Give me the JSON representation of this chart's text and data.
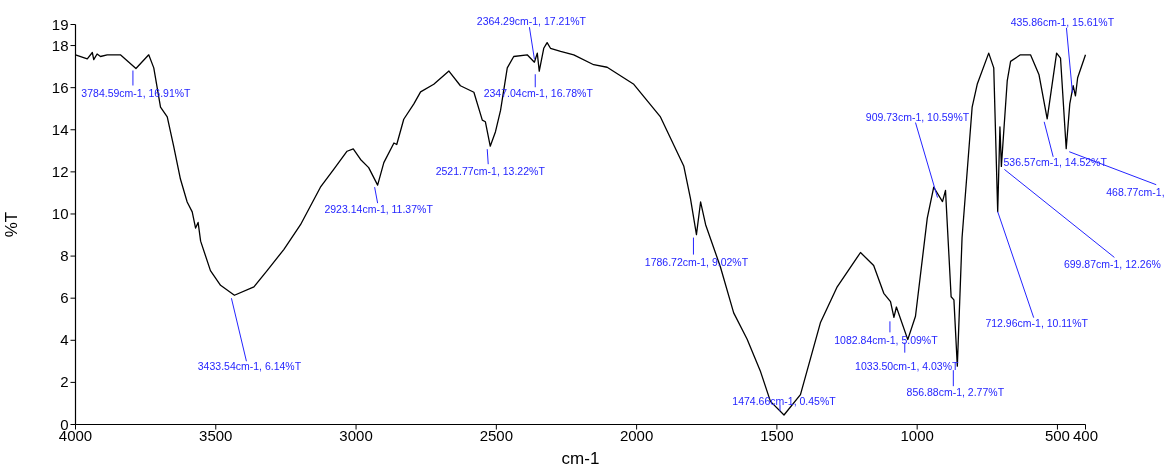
{
  "chart_data": {
    "type": "line",
    "xlabel": "cm-1",
    "ylabel": "%T",
    "xlim": [
      4000,
      400
    ],
    "ylim": [
      0,
      19
    ],
    "xticks": [
      4000,
      3500,
      3000,
      2500,
      2000,
      1500,
      1000,
      500,
      400
    ],
    "yticks": [
      0,
      2,
      4,
      6,
      8,
      10,
      12,
      14,
      16,
      18,
      19
    ],
    "grid": false,
    "series": [
      {
        "color": "#000000",
        "x": [
          4000,
          3958,
          3940,
          3935,
          3923,
          3911,
          3887,
          3840,
          3784.59,
          3739,
          3721,
          3697,
          3673,
          3650,
          3626,
          3602,
          3584,
          3572,
          3563,
          3554,
          3519,
          3483,
          3433.54,
          3364,
          3317,
          3257,
          3198,
          3127,
          3079,
          3032,
          3010,
          2984,
          2955,
          2923.14,
          2901,
          2865,
          2855,
          2830,
          2794,
          2770,
          2723,
          2669,
          2628,
          2580,
          2550,
          2539,
          2521.77,
          2503,
          2485,
          2461,
          2438,
          2390,
          2364.29,
          2354,
          2347.04,
          2331,
          2319,
          2307,
          2271,
          2224,
          2153,
          2105,
          2010,
          1915,
          1832,
          1808,
          1786.72,
          1772,
          1754,
          1701,
          1654,
          1606,
          1558,
          1523,
          1474.66,
          1416,
          1345,
          1285,
          1202,
          1155,
          1119,
          1095,
          1082.84,
          1074,
          1033.5,
          1006,
          964,
          941,
          909.73,
          899,
          879,
          869,
          856.88,
          840,
          804,
          786,
          745,
          727,
          712.96,
          705,
          699.87,
          679,
          667,
          632,
          596,
          566,
          536.57,
          503,
          489,
          468.77,
          456,
          444,
          435.86,
          428,
          400
        ],
        "values": [
          17.56,
          17.37,
          17.67,
          17.33,
          17.6,
          17.48,
          17.56,
          17.56,
          16.91,
          17.56,
          16.94,
          15.08,
          14.61,
          13.21,
          11.66,
          10.57,
          10.1,
          9.33,
          9.6,
          8.71,
          7.31,
          6.61,
          6.14,
          6.54,
          7.31,
          8.32,
          9.49,
          11.27,
          12.13,
          12.98,
          13.09,
          12.59,
          12.2,
          11.37,
          12.44,
          13.37,
          13.3,
          14.5,
          15.23,
          15.8,
          16.16,
          16.79,
          16.09,
          15.78,
          14.46,
          14.38,
          13.22,
          13.91,
          14.92,
          16.94,
          17.48,
          17.56,
          17.21,
          17.64,
          16.78,
          17.87,
          18.14,
          17.87,
          17.72,
          17.56,
          17.09,
          16.97,
          16.16,
          14.61,
          12.28,
          10.73,
          9.02,
          10.57,
          9.49,
          7.47,
          5.3,
          4.05,
          2.5,
          1.1,
          0.45,
          1.42,
          4.83,
          6.54,
          8.17,
          7.55,
          6.23,
          5.84,
          5.09,
          5.58,
          4.03,
          5.14,
          9.8,
          11.27,
          10.59,
          11.12,
          6.07,
          5.92,
          2.77,
          8.87,
          15.08,
          16.16,
          17.64,
          16.94,
          10.11,
          14.14,
          12.26,
          16.32,
          17.25,
          17.56,
          17.56,
          16.63,
          14.52,
          17.64,
          17.4,
          13.1,
          15.23,
          16.09,
          15.61,
          16.47,
          17.56
        ]
      }
    ],
    "annotations": [
      {
        "text": "3784.59cm-1, 16.91%T",
        "x": 3784.59,
        "y": 16.91
      },
      {
        "text": "3433.54cm-1, 6.14%T",
        "x": 3433.54,
        "y": 6.14
      },
      {
        "text": "2923.14cm-1, 11.37%T",
        "x": 2923.14,
        "y": 11.37
      },
      {
        "text": "2521.77cm-1, 13.22%T",
        "x": 2521.77,
        "y": 13.22
      },
      {
        "text": "2364.29cm-1, 17.21%T",
        "x": 2364.29,
        "y": 17.21
      },
      {
        "text": "2347.04cm-1, 16.78%T",
        "x": 2347.04,
        "y": 16.78
      },
      {
        "text": "1786.72cm-1, 9.02%T",
        "x": 1786.72,
        "y": 9.02
      },
      {
        "text": "1474.66cm-1, 0.45%T",
        "x": 1474.66,
        "y": 0.45
      },
      {
        "text": "1082.84cm-1, 5.09%T",
        "x": 1082.84,
        "y": 5.09
      },
      {
        "text": "1033.50cm-1, 4.03%T",
        "x": 1033.5,
        "y": 4.03
      },
      {
        "text": "856.88cm-1, 2.77%T",
        "x": 856.88,
        "y": 2.77
      },
      {
        "text": "909.73cm-1, 10.59%T",
        "x": 909.73,
        "y": 10.59
      },
      {
        "text": "712.96cm-1, 10.11%T",
        "x": 712.96,
        "y": 10.11
      },
      {
        "text": "699.87cm-1, 12.26%",
        "x": 699.87,
        "y": 12.26
      },
      {
        "text": "536.57cm-1, 14.52%T",
        "x": 536.57,
        "y": 14.52
      },
      {
        "text": "468.77cm-1,",
        "x": 468.77,
        "y": 13.1
      },
      {
        "text": "435.86cm-1, 15.61%T",
        "x": 435.86,
        "y": 15.61
      }
    ]
  }
}
